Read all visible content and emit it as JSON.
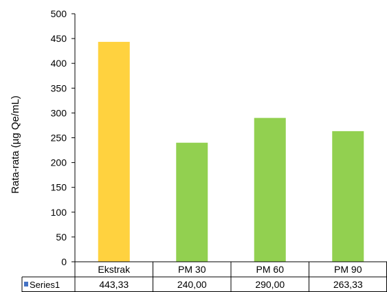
{
  "chart_data": {
    "type": "bar",
    "title": "",
    "xlabel": "",
    "ylabel": "Rata-rata (µg Qe/mL)",
    "ylim": [
      0,
      500
    ],
    "yticks": [
      0,
      50,
      100,
      150,
      200,
      250,
      300,
      350,
      400,
      450,
      500
    ],
    "categories": [
      "Ekstrak",
      "PM 30",
      "PM 60",
      "PM 90"
    ],
    "series": [
      {
        "name": "Series1",
        "values": [
          443.33,
          240.0,
          290.0,
          263.33
        ],
        "value_labels": [
          "443,33",
          "240,00",
          "290,00",
          "263,33"
        ]
      }
    ],
    "bar_colors": [
      "#FFD23F",
      "#92D050",
      "#92D050",
      "#92D050"
    ],
    "legend_marker_color": "#4472C4",
    "data_table": true,
    "grid": false
  }
}
